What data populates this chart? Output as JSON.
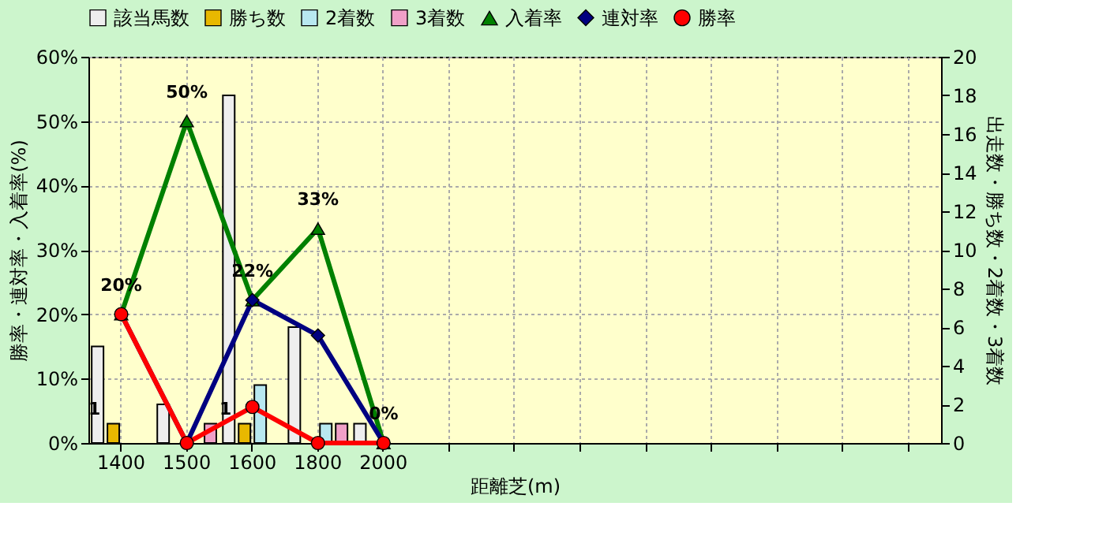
{
  "chart_data": {
    "type": "bar",
    "xlabel": "距離芝(m)",
    "ylabel": "勝率・連対率・入着率(%)",
    "y2label": "出走数・勝ち数・2着数・3着数",
    "categories": [
      "1400",
      "1500",
      "1600",
      "1800",
      "2000",
      null,
      null,
      null,
      null,
      null,
      null,
      null,
      null
    ],
    "ylim": [
      0,
      60
    ],
    "yticks": [
      {
        "value": 0,
        "label": "0%"
      },
      {
        "value": 10,
        "label": "10%"
      },
      {
        "value": 20,
        "label": "20%"
      },
      {
        "value": 30,
        "label": "30%"
      },
      {
        "value": 40,
        "label": "40%"
      },
      {
        "value": 50,
        "label": "50%"
      },
      {
        "value": 60,
        "label": "60%"
      }
    ],
    "y2lim": [
      0,
      20
    ],
    "y2ticks": [
      0,
      2,
      4,
      6,
      8,
      10,
      12,
      14,
      16,
      18,
      20
    ],
    "grid": true,
    "legend": "top",
    "series": [
      {
        "name": "該当馬数",
        "axis": "y2",
        "color": "#eeeeee",
        "values": [
          5,
          2,
          18,
          6,
          1,
          null,
          null,
          null,
          null,
          null,
          null,
          null,
          null
        ]
      },
      {
        "name": "勝ち数",
        "axis": "y2",
        "color": "#e8b800",
        "values": [
          1,
          0,
          1,
          0,
          0,
          null,
          null,
          null,
          null,
          null,
          null,
          null,
          null
        ],
        "value_labels": [
          "1",
          null,
          "1",
          null,
          null,
          null,
          null,
          null,
          null,
          null,
          null,
          null,
          null
        ]
      },
      {
        "name": "2着数",
        "axis": "y2",
        "color": "#b8e8f0",
        "values": [
          0,
          0,
          3,
          1,
          0,
          null,
          null,
          null,
          null,
          null,
          null,
          null,
          null
        ]
      },
      {
        "name": "3着数",
        "axis": "y2",
        "color": "#f0a0c8",
        "values": [
          0,
          1,
          0,
          1,
          0,
          null,
          null,
          null,
          null,
          null,
          null,
          null,
          null
        ]
      },
      {
        "name": "入着率",
        "type": "line",
        "marker": "triangle",
        "color": "#008000",
        "values": [
          20,
          50,
          22.2,
          33.3,
          0,
          null,
          null,
          null,
          null,
          null,
          null,
          null,
          null
        ],
        "value_labels": [
          "20%",
          "50%",
          "22%",
          "33%",
          "0%",
          null,
          null,
          null,
          null,
          null,
          null,
          null,
          null
        ]
      },
      {
        "name": "連対率",
        "type": "line",
        "marker": "diamond",
        "color": "#000080",
        "values": [
          20,
          0,
          22.2,
          16.7,
          0,
          null,
          null,
          null,
          null,
          null,
          null,
          null,
          null
        ]
      },
      {
        "name": "勝率",
        "type": "line",
        "marker": "circle",
        "color": "#ff0000",
        "values": [
          20,
          0,
          5.6,
          0,
          0,
          null,
          null,
          null,
          null,
          null,
          null,
          null,
          null
        ]
      }
    ]
  }
}
